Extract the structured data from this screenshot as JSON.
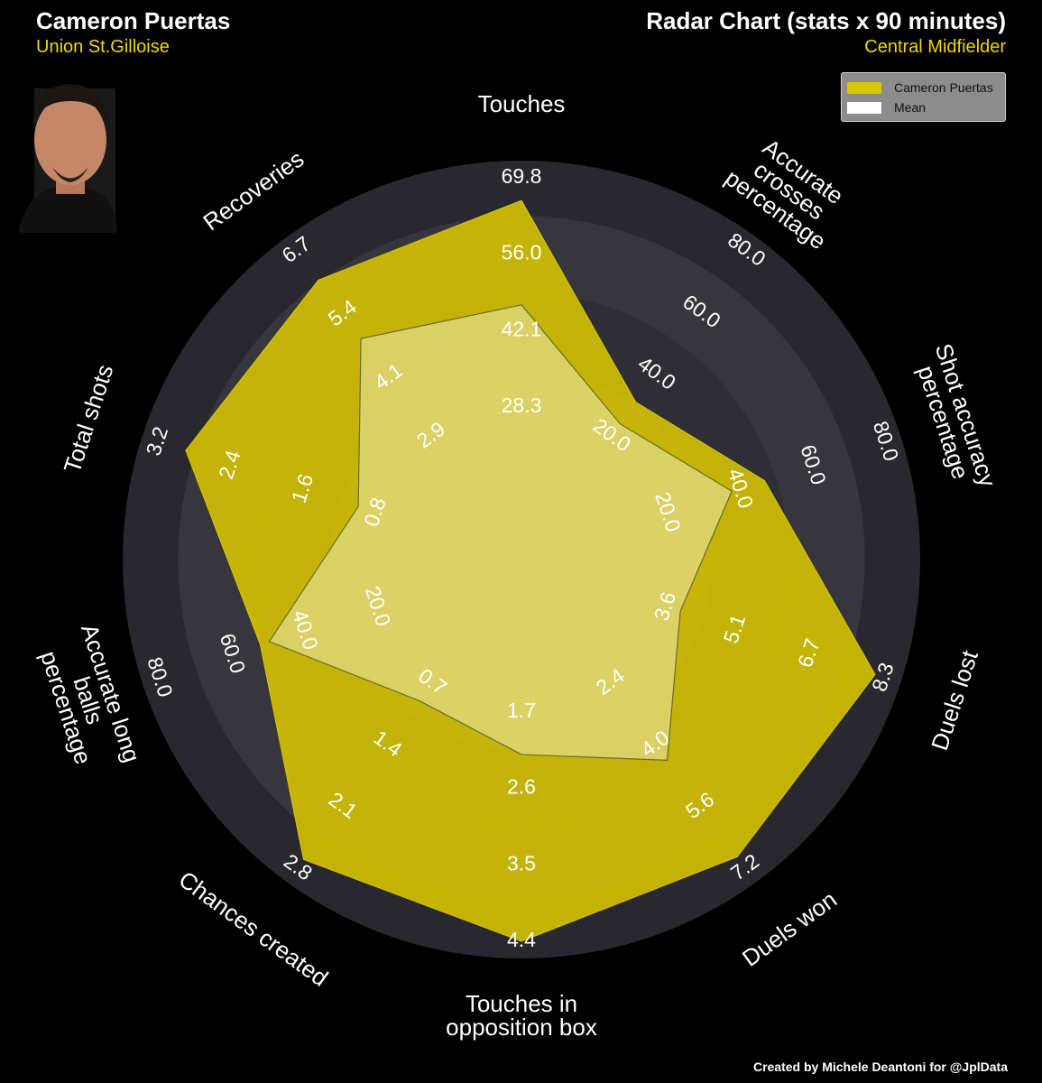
{
  "chart_data": {
    "type": "radar",
    "player_name": "Cameron Puertas",
    "team": "Union St.Gilloise",
    "title": "Radar Chart (stats x 90 minutes)",
    "position": "Central Midfielder",
    "credit": "Created by Michele Deantoni for @JplData",
    "legend": "upper right",
    "axes": [
      {
        "label": "Touches",
        "ticks": [
          28.3,
          42.1,
          {
            "value": 56,
            "label": "56.0"
          },
          69.8
        ]
      },
      {
        "label": "Accurate\ncrosses\npercentage",
        "ticks": [
          {
            "value": 20,
            "label": "20.0"
          },
          {
            "value": 40,
            "label": "40.0"
          },
          {
            "value": 60,
            "label": "60.0"
          },
          {
            "value": 80,
            "label": "80.0"
          }
        ]
      },
      {
        "label": "Shot accuracy\npercentage",
        "ticks": [
          {
            "value": 20,
            "label": "20.0"
          },
          {
            "value": 40,
            "label": "40.0"
          },
          {
            "value": 60,
            "label": "60.0"
          },
          {
            "value": 80,
            "label": "80.0"
          }
        ]
      },
      {
        "label": "Duels lost",
        "ticks": [
          3.6,
          5.1,
          6.7,
          8.3
        ]
      },
      {
        "label": "Duels won",
        "ticks": [
          2.4,
          {
            "value": 4,
            "label": "4.0"
          },
          5.6,
          7.2
        ]
      },
      {
        "label": "Touches in\nopposition box",
        "ticks": [
          1.7,
          2.6,
          3.5,
          4.4
        ]
      },
      {
        "label": "Chances created",
        "ticks": [
          0.7,
          1.4,
          2.1,
          2.8
        ]
      },
      {
        "label": "Accurate long\nballs\npercentage",
        "ticks": [
          {
            "value": 20,
            "label": "20.0"
          },
          {
            "value": 40,
            "label": "40.0"
          },
          {
            "value": 60,
            "label": "60.0"
          },
          {
            "value": 80,
            "label": "80.0"
          }
        ]
      },
      {
        "label": "Total shots",
        "ticks": [
          0.8,
          1.6,
          2.4,
          3.2
        ]
      },
      {
        "label": "Recoveries",
        "ticks": [
          2.9,
          4.1,
          5.4,
          6.7
        ]
      }
    ],
    "series": [
      {
        "name": "Cameron Puertas",
        "color": "#d8c600",
        "values": [
          65.7,
          31,
          47,
          8.1,
          6.9,
          4.4,
          2.7,
          52,
          2.9,
          6.1
        ]
      },
      {
        "name": "Mean",
        "color": "#ffffff",
        "values": [
          46.8,
          24,
          38,
          3.9,
          4.4,
          2.2,
          0.9,
          49.5,
          1.0,
          4.9
        ]
      }
    ]
  }
}
